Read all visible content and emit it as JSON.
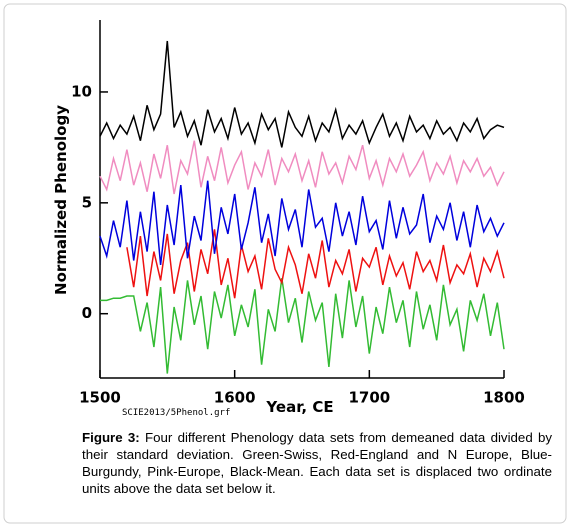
{
  "chart_data": {
    "type": "line",
    "xlabel": "Year, CE",
    "ylabel": "Normalized Phenology",
    "source_note": "SCIE2013/5Phenol.grf",
    "caption_label": "Figure 3:",
    "caption_text": "Four different Phenology data sets from demeaned data divided by their standard deviation. Green-Swiss, Red-England and N Europe, Blue-Burgundy, Pink-Europe, Black-Mean. Each data set is displaced two ordinate units above the data set below it.",
    "xlim": [
      1500,
      1800
    ],
    "xticks": [
      1500,
      1600,
      1700,
      1800
    ],
    "ylim": [
      -2.9,
      13.2
    ],
    "yticks": [
      0,
      5,
      10
    ],
    "x": [
      1500,
      1505,
      1510,
      1515,
      1520,
      1525,
      1530,
      1535,
      1540,
      1545,
      1550,
      1555,
      1560,
      1565,
      1570,
      1575,
      1580,
      1585,
      1590,
      1595,
      1600,
      1605,
      1610,
      1615,
      1620,
      1625,
      1630,
      1635,
      1640,
      1645,
      1650,
      1655,
      1660,
      1665,
      1670,
      1675,
      1680,
      1685,
      1690,
      1695,
      1700,
      1705,
      1710,
      1715,
      1720,
      1725,
      1730,
      1735,
      1740,
      1745,
      1750,
      1755,
      1760,
      1765,
      1770,
      1775,
      1780,
      1785,
      1790,
      1795,
      1800
    ],
    "series": [
      {
        "color": "#33bb33",
        "values": [
          0.6,
          0.6,
          0.7,
          0.7,
          0.8,
          0.8,
          -0.8,
          0.5,
          -1.5,
          1.2,
          -2.7,
          0.3,
          -1.2,
          1.5,
          -0.5,
          0.8,
          -1.6,
          1.0,
          -0.2,
          1.3,
          -1.0,
          0.4,
          -0.6,
          1.1,
          -2.3,
          0.2,
          -0.8,
          1.6,
          -0.4,
          0.7,
          -1.3,
          1.0,
          -0.3,
          0.5,
          -2.4,
          0.9,
          -1.1,
          1.5,
          -0.6,
          0.8,
          -1.8,
          0.3,
          -0.9,
          1.2,
          -0.4,
          0.6,
          -1.5,
          1.0,
          -0.7,
          0.4,
          -1.2,
          1.3,
          -0.5,
          0.2,
          -1.7,
          0.6,
          -0.3,
          0.9,
          -1.0,
          0.5,
          -1.6
        ]
      },
      {
        "color": "#ee1111",
        "values": [
          null,
          null,
          null,
          null,
          3.0,
          1.2,
          3.5,
          0.8,
          2.8,
          1.5,
          3.6,
          0.9,
          2.4,
          3.2,
          1.0,
          2.9,
          1.8,
          3.8,
          1.3,
          2.5,
          0.7,
          3.1,
          1.9,
          2.6,
          1.1,
          3.4,
          2.0,
          1.4,
          3.0,
          2.2,
          0.9,
          2.7,
          1.6,
          3.3,
          1.2,
          2.4,
          1.8,
          2.9,
          1.0,
          2.5,
          2.1,
          3.0,
          1.3,
          2.6,
          1.7,
          2.3,
          1.1,
          2.8,
          1.9,
          2.4,
          1.5,
          3.1,
          1.4,
          2.2,
          1.8,
          2.7,
          1.2,
          2.5,
          1.9,
          2.8,
          1.6
        ]
      },
      {
        "color": "#0000dd",
        "values": [
          3.5,
          2.6,
          4.2,
          3.0,
          5.1,
          2.4,
          4.6,
          2.8,
          5.5,
          2.2,
          4.9,
          3.1,
          5.8,
          2.5,
          4.4,
          3.3,
          6.0,
          2.7,
          4.8,
          3.6,
          5.4,
          2.9,
          4.1,
          5.7,
          3.2,
          4.5,
          2.6,
          5.2,
          3.8,
          4.7,
          3.0,
          5.6,
          3.9,
          4.3,
          2.8,
          5.0,
          3.5,
          4.6,
          3.1,
          5.3,
          3.7,
          4.2,
          2.9,
          5.1,
          3.4,
          4.8,
          3.6,
          4.0,
          5.4,
          3.2,
          4.4,
          3.8,
          5.0,
          3.3,
          4.6,
          3.0,
          4.9,
          3.7,
          4.3,
          3.5,
          4.1
        ]
      },
      {
        "color": "#f08cc0",
        "values": [
          6.2,
          5.6,
          7.0,
          6.0,
          7.4,
          5.8,
          6.8,
          5.5,
          7.2,
          6.1,
          7.6,
          5.4,
          6.9,
          6.3,
          7.8,
          5.7,
          7.1,
          6.0,
          7.5,
          5.9,
          6.7,
          7.3,
          5.6,
          6.8,
          6.2,
          7.4,
          5.8,
          7.0,
          6.4,
          7.2,
          6.0,
          6.9,
          5.7,
          7.3,
          6.3,
          6.8,
          5.9,
          7.1,
          6.5,
          7.6,
          6.1,
          6.9,
          5.8,
          7.0,
          6.4,
          7.2,
          6.2,
          6.7,
          7.3,
          6.0,
          6.8,
          6.3,
          7.1,
          5.9,
          6.9,
          6.4,
          7.0,
          6.2,
          6.6,
          5.8,
          6.4
        ]
      },
      {
        "color": "#000000",
        "values": [
          8.0,
          8.6,
          7.9,
          8.5,
          8.1,
          8.9,
          7.8,
          9.4,
          8.3,
          9.0,
          12.3,
          8.4,
          9.1,
          8.0,
          8.7,
          7.6,
          9.2,
          8.2,
          8.8,
          7.9,
          9.3,
          8.1,
          8.6,
          7.7,
          9.0,
          8.3,
          8.8,
          7.5,
          9.1,
          8.4,
          8.0,
          8.9,
          7.8,
          8.6,
          8.2,
          9.2,
          7.9,
          8.5,
          8.1,
          8.7,
          7.7,
          8.4,
          9.0,
          8.0,
          8.6,
          7.8,
          8.9,
          8.2,
          8.5,
          7.9,
          8.7,
          8.1,
          8.4,
          7.8,
          8.6,
          8.2,
          8.8,
          7.9,
          8.3,
          8.5,
          8.4
        ]
      }
    ]
  }
}
